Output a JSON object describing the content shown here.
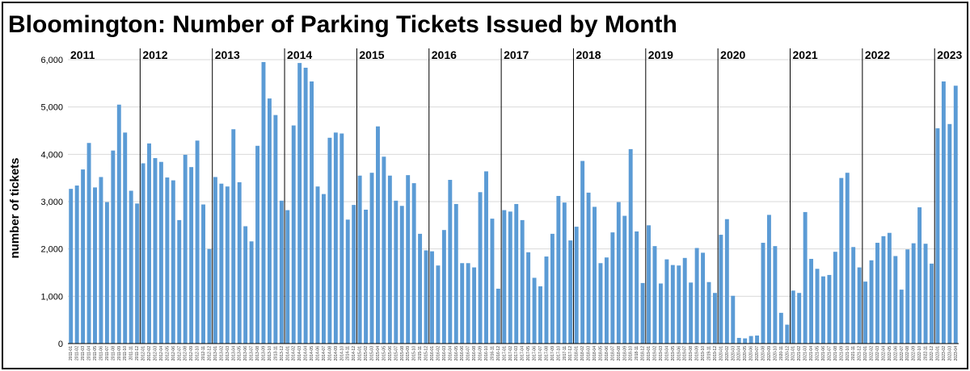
{
  "chart_data": {
    "type": "bar",
    "title": "Bloomington: Number of Parking Tickets Issued by Month",
    "ylabel": "number of tickets",
    "xlabel": "",
    "ylim": [
      0,
      6000
    ],
    "yticks": [
      "0",
      "1,000",
      "2,000",
      "3,000",
      "4,000",
      "5,000",
      "6,000"
    ],
    "grid": true,
    "legend": "none",
    "bar_color": "#5b9bd5",
    "years": [
      "2011",
      "2012",
      "2013",
      "2014",
      "2015",
      "2016",
      "2017",
      "2018",
      "2019",
      "2020",
      "2021",
      "2022",
      "2023"
    ],
    "categories": [
      "2011-01",
      "2011-02",
      "2011-03",
      "2011-04",
      "2011-05",
      "2011-06",
      "2011-07",
      "2011-08",
      "2011-09",
      "2011-10",
      "2011-11",
      "2011-12",
      "2012-01",
      "2012-02",
      "2012-03",
      "2012-04",
      "2012-05",
      "2012-06",
      "2012-07",
      "2012-08",
      "2012-09",
      "2012-10",
      "2012-11",
      "2012-12",
      "2013-01",
      "2013-02",
      "2013-03",
      "2013-04",
      "2013-05",
      "2013-06",
      "2013-07",
      "2013-08",
      "2013-09",
      "2013-10",
      "2013-11",
      "2013-12",
      "2014-01",
      "2014-02",
      "2014-03",
      "2014-04",
      "2014-05",
      "2014-06",
      "2014-07",
      "2014-08",
      "2014-09",
      "2014-10",
      "2014-11",
      "2014-12",
      "2015-01",
      "2015-02",
      "2015-03",
      "2015-04",
      "2015-05",
      "2015-06",
      "2015-07",
      "2015-08",
      "2015-09",
      "2015-10",
      "2015-11",
      "2015-12",
      "2016-01",
      "2016-02",
      "2016-03",
      "2016-04",
      "2016-05",
      "2016-06",
      "2016-07",
      "2016-08",
      "2016-09",
      "2016-10",
      "2016-11",
      "2016-12",
      "2017-01",
      "2017-02",
      "2017-03",
      "2017-04",
      "2017-05",
      "2017-06",
      "2017-07",
      "2017-08",
      "2017-09",
      "2017-10",
      "2017-11",
      "2017-12",
      "2018-01",
      "2018-02",
      "2018-03",
      "2018-04",
      "2018-05",
      "2018-06",
      "2018-07",
      "2018-08",
      "2018-09",
      "2018-10",
      "2018-11",
      "2018-12",
      "2019-01",
      "2019-02",
      "2019-03",
      "2019-04",
      "2019-05",
      "2019-06",
      "2019-07",
      "2019-08",
      "2019-09",
      "2019-10",
      "2019-11",
      "2019-12",
      "2020-01",
      "2020-02",
      "2020-03",
      "2020-04",
      "2020-05",
      "2020-06",
      "2020-07",
      "2020-08",
      "2020-09",
      "2020-10",
      "2020-11",
      "2020-12",
      "2021-01",
      "2021-02",
      "2021-03",
      "2021-04",
      "2021-05",
      "2021-06",
      "2021-07",
      "2021-08",
      "2021-09",
      "2021-10",
      "2021-11",
      "2021-12",
      "2022-01",
      "2022-02",
      "2022-03",
      "2022-04",
      "2022-05",
      "2022-06",
      "2022-07",
      "2022-08",
      "2022-09",
      "2022-10",
      "2022-11",
      "2022-12",
      "2023-01",
      "2023-02",
      "2023-03",
      "2023-04"
    ],
    "values": [
      3270,
      3340,
      3680,
      4240,
      3300,
      3520,
      2990,
      4080,
      5050,
      4460,
      3230,
      2960,
      3810,
      4230,
      3920,
      3840,
      3510,
      3450,
      2610,
      3990,
      3730,
      4290,
      2940,
      2000,
      3520,
      3380,
      3320,
      4530,
      3410,
      2480,
      2160,
      4180,
      5950,
      5180,
      4830,
      3020,
      2820,
      4610,
      5930,
      5830,
      5540,
      3320,
      3160,
      4350,
      4460,
      4440,
      2620,
      2930,
      3550,
      2830,
      3610,
      4590,
      3950,
      3550,
      3020,
      2910,
      3560,
      3390,
      2320,
      1970,
      1950,
      1650,
      2400,
      3460,
      2950,
      1700,
      1700,
      1610,
      3200,
      3640,
      2640,
      1160,
      2820,
      2790,
      2950,
      2610,
      1930,
      1390,
      1210,
      1840,
      2320,
      3120,
      2980,
      2180,
      2470,
      3860,
      3190,
      2890,
      1700,
      1820,
      2350,
      2990,
      2700,
      4110,
      2370,
      1280,
      2500,
      2060,
      1270,
      1780,
      1660,
      1650,
      1810,
      1290,
      2020,
      1920,
      1300,
      1070,
      2300,
      2630,
      1010,
      120,
      110,
      160,
      170,
      2130,
      2720,
      2060,
      650,
      400,
      1120,
      1070,
      2780,
      1790,
      1580,
      1420,
      1450,
      1940,
      3500,
      3610,
      2040,
      1610,
      1310,
      1760,
      2130,
      2270,
      2340,
      1850,
      1140,
      1990,
      2120,
      2880,
      2110,
      1690,
      4550,
      5540,
      4640,
      5450
    ]
  }
}
